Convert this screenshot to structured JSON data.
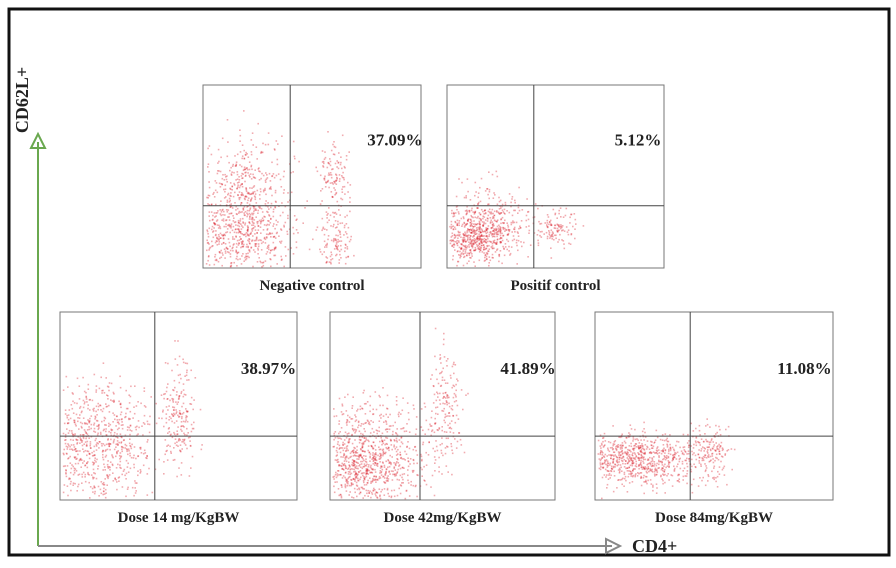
{
  "axes": {
    "y_label": "CD62L+",
    "x_label": "CD4+"
  },
  "panels": [
    {
      "label": "Negative control",
      "percent": "37.09%"
    },
    {
      "label": "Positif control",
      "percent": "5.12%"
    },
    {
      "label": "Dose 14 mg/KgBW",
      "percent": "38.97%"
    },
    {
      "label": "Dose 42mg/KgBW",
      "percent": "41.89%"
    },
    {
      "label": "Dose 84mg/KgBW",
      "percent": "11.08%"
    }
  ]
}
